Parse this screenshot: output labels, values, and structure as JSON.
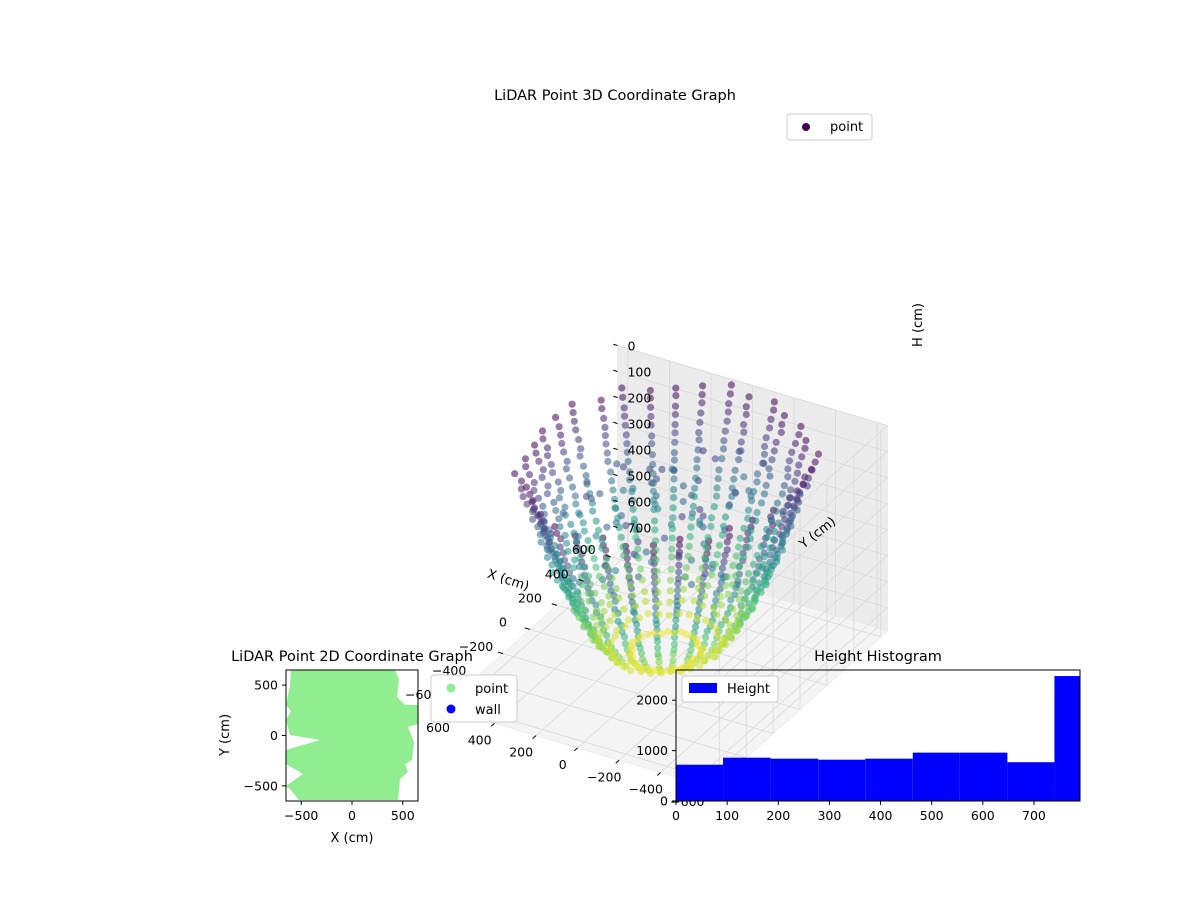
{
  "chart_data": [
    {
      "type": "scatter",
      "title": "LiDAR Point 3D Coordinate Graph",
      "xlabel": "X (cm)",
      "ylabel": "Y (cm)",
      "zlabel": "H (cm)",
      "xlim": [
        -650,
        650
      ],
      "ylim": [
        -650,
        650
      ],
      "zlim": [
        0,
        790
      ],
      "z_inverted": true,
      "x_ticks": [
        -600,
        -400,
        -200,
        0,
        200,
        400,
        600
      ],
      "y_ticks": [
        -600,
        -400,
        -200,
        0,
        200,
        400,
        600
      ],
      "z_ticks": [
        0,
        100,
        200,
        300,
        400,
        500,
        600,
        700
      ],
      "colormap": "viridis",
      "legend": {
        "position": "top-right",
        "entries": [
          {
            "label": "point",
            "color": "#440154"
          }
        ]
      },
      "series": [
        {
          "name": "point",
          "description_of_values": "dense LiDAR return rings forming a bowl-shaped room scan, colored by height"
        }
      ],
      "grid": true
    },
    {
      "type": "scatter",
      "title": "LiDAR Point 2D Coordinate Graph",
      "xlabel": "X (cm)",
      "ylabel": "Y (cm)",
      "xlim": [
        -650,
        650
      ],
      "ylim": [
        -650,
        650
      ],
      "x_ticks": [
        -500,
        0,
        500
      ],
      "y_ticks": [
        -500,
        0,
        500
      ],
      "legend": {
        "position": "outside-right",
        "entries": [
          {
            "label": "point",
            "color": "#90ee90"
          },
          {
            "label": "wall",
            "color": "#0000ff"
          }
        ]
      },
      "grid": false
    },
    {
      "type": "bar",
      "title": "Height Histogram",
      "xlabel": "",
      "ylabel": "",
      "xlim": [
        0,
        790
      ],
      "ylim": [
        0,
        2600
      ],
      "x_ticks": [
        0,
        100,
        200,
        300,
        400,
        500,
        600,
        700
      ],
      "y_ticks": [
        0,
        1000,
        2000
      ],
      "bin_edges": [
        0,
        92,
        185,
        278,
        370,
        463,
        555,
        648,
        740,
        790
      ],
      "values": [
        720,
        860,
        840,
        820,
        840,
        960,
        960,
        770,
        2480
      ],
      "color": "#0000ff",
      "legend": {
        "position": "top-left",
        "entries": [
          {
            "label": "Height",
            "color": "#0000ff"
          }
        ]
      }
    }
  ]
}
